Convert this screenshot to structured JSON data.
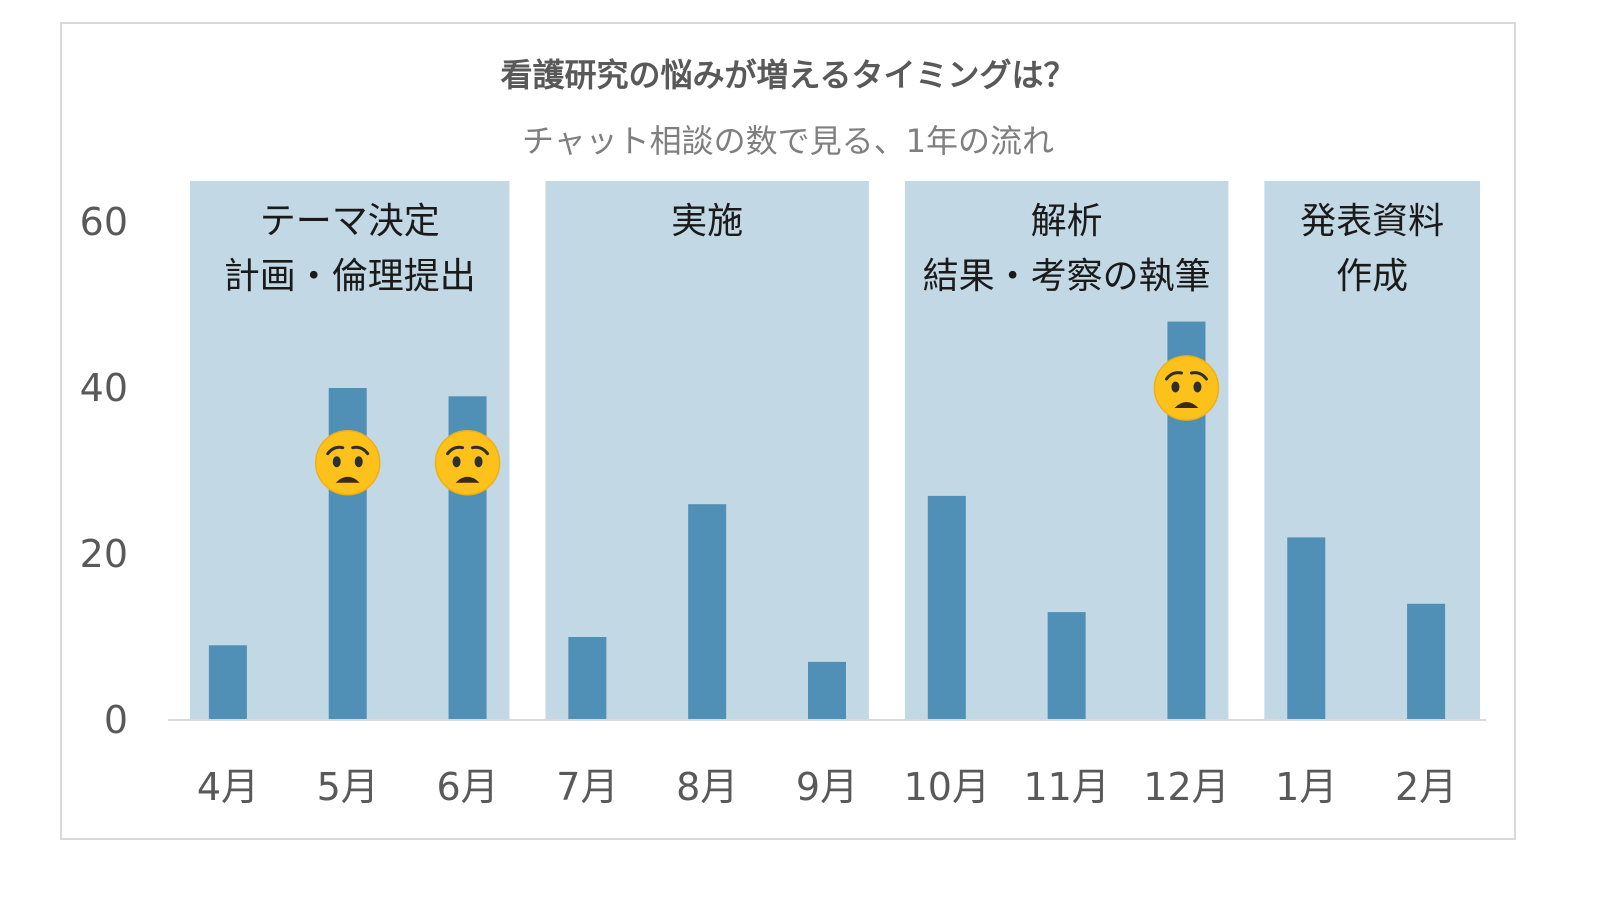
{
  "chart_data": {
    "type": "bar",
    "title": "看護研究の悩みが増えるタイミングは？",
    "subtitle": "チャット相談の数で見る、1年の流れ",
    "xlabel": "",
    "ylabel": "",
    "categories": [
      "4月",
      "5月",
      "6月",
      "7月",
      "8月",
      "9月",
      "10月",
      "11月",
      "12月",
      "1月",
      "2月"
    ],
    "values": [
      9,
      40,
      39,
      10,
      26,
      7,
      27,
      13,
      48,
      22,
      14
    ],
    "ylim": [
      0,
      60
    ],
    "yticks": [
      0,
      20,
      40,
      60
    ],
    "grid": false,
    "legend": "none",
    "bar_color": "#508fb6",
    "phase_color": "#c2d8e5",
    "phases": [
      {
        "lines": [
          "テーマ決定",
          "計画・倫理提出"
        ],
        "start": 0,
        "end": 2
      },
      {
        "lines": [
          "実施"
        ],
        "start": 3,
        "end": 5
      },
      {
        "lines": [
          "解析",
          "結果・考察の執筆"
        ],
        "start": 6,
        "end": 8
      },
      {
        "lines": [
          "発表資料",
          "作成"
        ],
        "start": 9,
        "end": 10
      }
    ],
    "annotations": [
      {
        "category_index": 1,
        "icon": "worried-face-icon",
        "value": 31
      },
      {
        "category_index": 2,
        "icon": "worried-face-icon",
        "value": 31
      },
      {
        "category_index": 8,
        "icon": "worried-face-icon",
        "value": 40
      }
    ]
  }
}
